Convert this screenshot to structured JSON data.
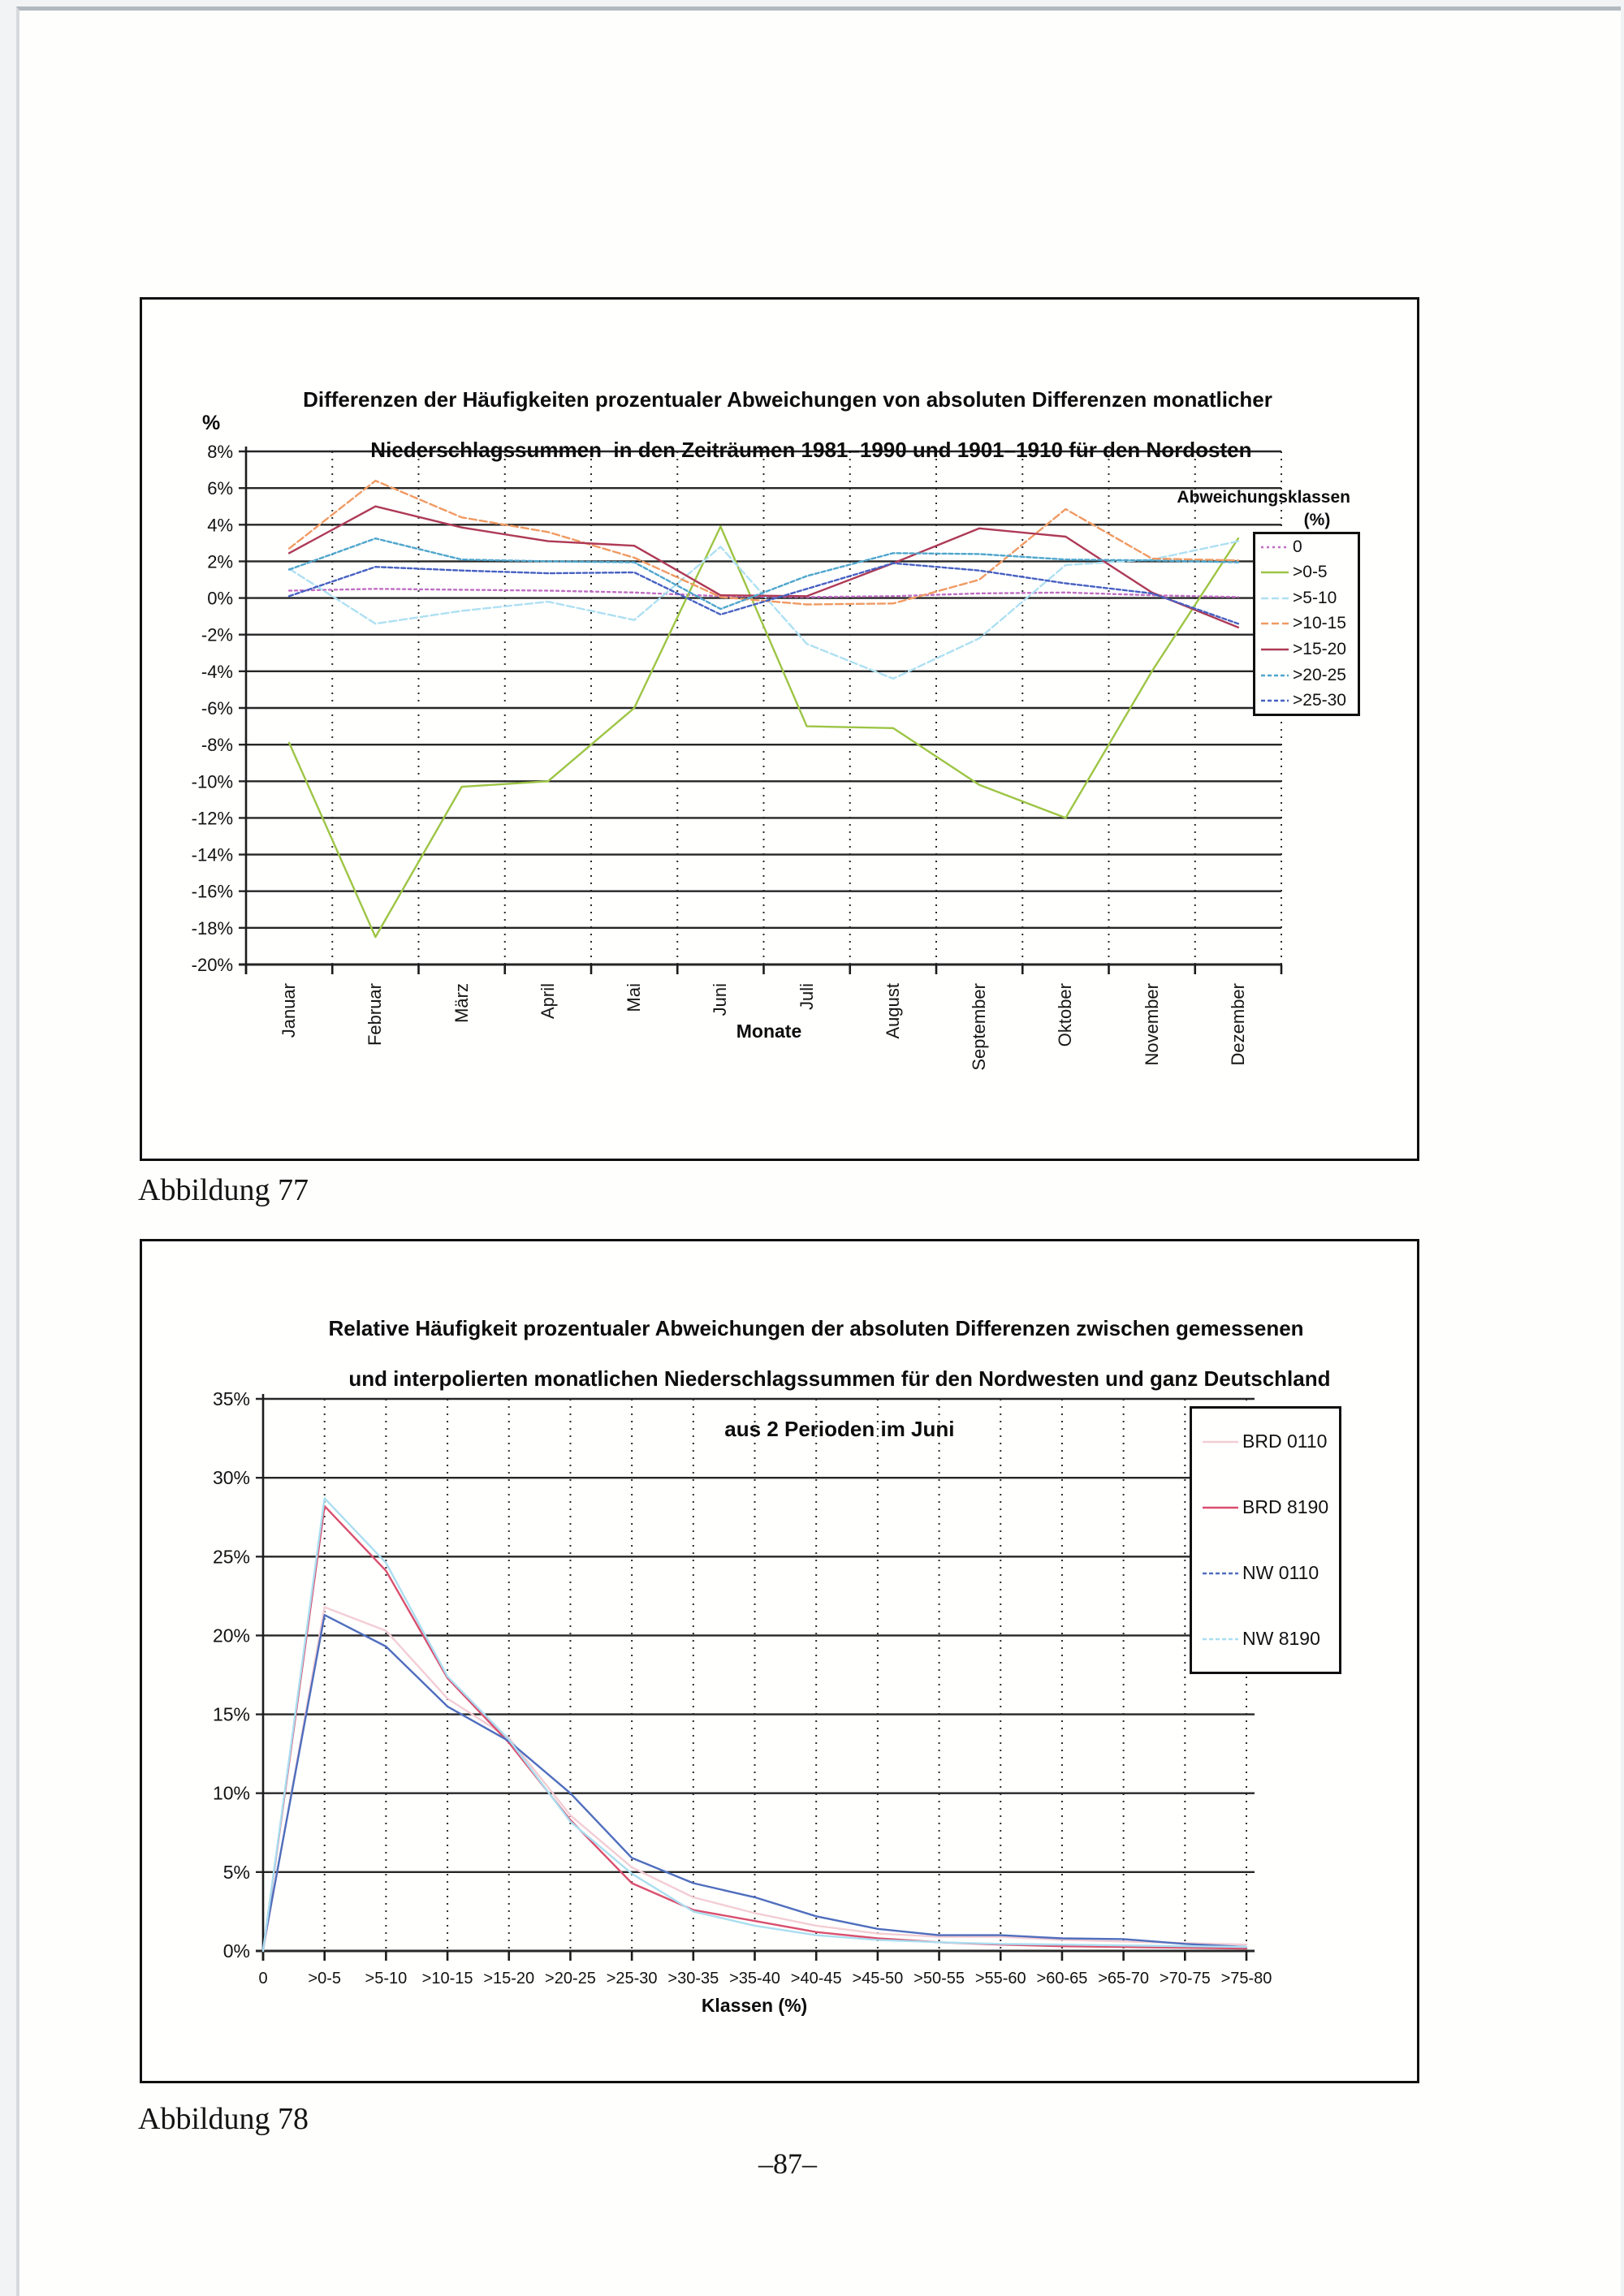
{
  "page": {
    "captions": [
      "Abbildung 77",
      "Abbildung 78"
    ],
    "page_number": "–87–"
  },
  "chart_data": [
    {
      "type": "line",
      "title_lines": [
        "Differenzen der Häufigkeiten prozentualer Abweichungen von absoluten Differenzen monatlicher",
        "Niederschlagssummen  in den Zeiträumen 1981–1990 und 1901–1910 für den Nordosten"
      ],
      "y_axis_title": "%",
      "x_axis_title": "Monate",
      "legend_title_lines": [
        "Abweichungsklassen",
        "(%)"
      ],
      "legend_position": "right-inside",
      "grid": "horizontal-solid-vertical-dotted",
      "ylim": [
        -20,
        8
      ],
      "ytick_step": 2,
      "ytick_suffix": "%",
      "categories": [
        "Januar",
        "Februar",
        "März",
        "April",
        "Mai",
        "Juni",
        "Juli",
        "August",
        "September",
        "Oktober",
        "November",
        "Dezember"
      ],
      "series": [
        {
          "name": "0",
          "color": "#c06ec4",
          "dash": "3,4",
          "values": [
            0.4,
            0.5,
            0.45,
            0.4,
            0.3,
            0.1,
            0.05,
            0.1,
            0.25,
            0.3,
            0.15,
            0.05
          ]
        },
        {
          "name": ">0-5",
          "color": "#9dc544",
          "dash": null,
          "values": [
            -7.9,
            -18.5,
            -10.3,
            -10.0,
            -6.0,
            3.9,
            -7.0,
            -7.1,
            -10.2,
            -12.0,
            -4.0,
            3.25
          ]
        },
        {
          "name": ">5-10",
          "color": "#aee0f2",
          "dash": "9,4",
          "values": [
            1.6,
            -1.4,
            -0.7,
            -0.2,
            -1.2,
            2.8,
            -2.5,
            -4.4,
            -2.2,
            1.8,
            2.1,
            3.1
          ]
        },
        {
          "name": ">10-15",
          "color": "#f09a62",
          "dash": "9,4",
          "values": [
            2.7,
            6.4,
            4.4,
            3.6,
            2.2,
            0.05,
            -0.35,
            -0.3,
            1.0,
            4.85,
            2.15,
            2.05
          ]
        },
        {
          "name": ">15-20",
          "color": "#ae3a56",
          "dash": null,
          "values": [
            2.45,
            5.0,
            3.85,
            3.1,
            2.85,
            0.15,
            0.1,
            1.9,
            3.8,
            3.35,
            0.3,
            -1.6
          ]
        },
        {
          "name": ">20-25",
          "color": "#4fa6cc",
          "dash": "5,3",
          "values": [
            1.55,
            3.25,
            2.1,
            2.0,
            1.95,
            -0.6,
            1.2,
            2.45,
            2.4,
            2.1,
            2.05,
            1.95
          ]
        },
        {
          "name": ">25-30",
          "color": "#4761c2",
          "dash": "5,3",
          "values": [
            0.1,
            1.7,
            1.5,
            1.35,
            1.4,
            -0.9,
            0.5,
            1.9,
            1.5,
            0.8,
            0.25,
            -1.4
          ]
        }
      ]
    },
    {
      "type": "line",
      "title_lines": [
        "Relative Häufigkeit prozentualer Abweichungen der absoluten Differenzen zwischen gemessenen",
        "und interpolierten monatlichen Niederschlagssummen für den Nordwesten und ganz Deutschland",
        "aus 2 Perioden im Juni"
      ],
      "y_axis_title": "",
      "x_axis_title": "Klassen (%)",
      "legend_title_lines": [],
      "legend_position": "right-inside",
      "grid": "horizontal-solid-vertical-dotted",
      "ylim": [
        0,
        35
      ],
      "ytick_step": 5,
      "ytick_suffix": "%",
      "categories": [
        "0",
        ">0-5",
        ">5-10",
        ">10-15",
        ">15-20",
        ">20-25",
        ">25-30",
        ">30-35",
        ">35-40",
        ">40-45",
        ">45-50",
        ">50-55",
        ">55-60",
        ">60-65",
        ">65-70",
        ">70-75",
        ">75-80"
      ],
      "series": [
        {
          "name": "BRD 0110",
          "color": "#f3cdd4",
          "dash": null,
          "legend_dash": null,
          "values": [
            0,
            21.8,
            20.3,
            16.0,
            13.5,
            8.6,
            5.3,
            3.4,
            2.4,
            1.6,
            1.1,
            0.9,
            0.9,
            0.7,
            0.6,
            0.5,
            0.4
          ]
        },
        {
          "name": "BRD 8190",
          "color": "#d94f6e",
          "dash": null,
          "legend_dash": null,
          "values": [
            0,
            28.2,
            24.1,
            17.3,
            13.2,
            8.3,
            4.3,
            2.6,
            1.9,
            1.2,
            0.8,
            0.55,
            0.4,
            0.3,
            0.25,
            0.2,
            0.15
          ]
        },
        {
          "name": "NW 0110",
          "color": "#4f6ebd",
          "dash": null,
          "legend_dash": "5,3",
          "values": [
            0.2,
            21.3,
            19.3,
            15.5,
            13.3,
            10.0,
            5.9,
            4.3,
            3.4,
            2.2,
            1.4,
            1.0,
            1.0,
            0.8,
            0.75,
            0.45,
            0.25
          ]
        },
        {
          "name": "NW 8190",
          "color": "#aadef0",
          "dash": null,
          "legend_dash": "5,3",
          "values": [
            0,
            28.7,
            24.6,
            17.4,
            13.4,
            8.2,
            4.9,
            2.5,
            1.6,
            1.0,
            0.7,
            0.55,
            0.45,
            0.4,
            0.35,
            0.3,
            0.25
          ]
        }
      ]
    }
  ]
}
